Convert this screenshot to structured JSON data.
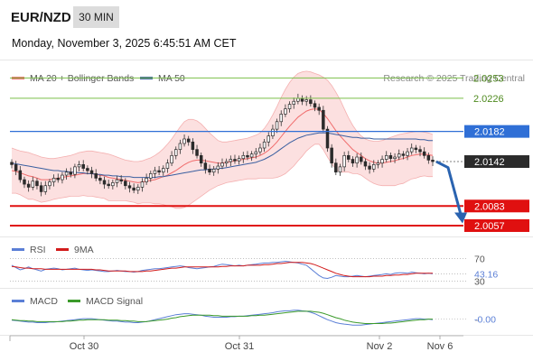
{
  "header": {
    "pair": "EUR/NZD",
    "timeframe": "30 MIN",
    "datetime": "Monday, November 3, 2025 6:45:51 AM CET"
  },
  "watermark": "Research © 2025 Trading Central",
  "colors": {
    "bollinger": "#f06b6b",
    "ma50": "#3a5fa0",
    "green_level": "#7bbf4a",
    "blue_level": "#2f6fd6",
    "red_level": "#e01010",
    "current_price": "#2b2b2b",
    "rsi": "#5b7fd6",
    "rsi_9ma": "#d21b1b",
    "macd": "#5b7fd6",
    "macd_signal": "#3b9a2a",
    "arrow": "#2a63b0"
  },
  "chart_data": [
    {
      "type": "candlestick",
      "name": "price",
      "legend": [
        {
          "label": "MA 20 + Bollinger Bands",
          "color": "#f06b6b"
        },
        {
          "label": "MA 50",
          "color": "#3a5fa0"
        }
      ],
      "ylim": [
        2.0045,
        2.0275
      ],
      "x_labels": [
        "Oct 30",
        "Oct 31",
        "Nov 2",
        "Nov 6"
      ],
      "levels": [
        {
          "value": 2.0253,
          "label": "2.0253",
          "kind": "resistance-green"
        },
        {
          "value": 2.0226,
          "label": "2.0226",
          "kind": "resistance-green"
        },
        {
          "value": 2.0182,
          "label": "2.0182",
          "kind": "pivot-blue"
        },
        {
          "value": 2.0142,
          "label": "2.0142",
          "kind": "current"
        },
        {
          "value": 2.0083,
          "label": "2.0083",
          "kind": "support-red"
        },
        {
          "value": 2.0057,
          "label": "2.0057",
          "kind": "support-red"
        }
      ],
      "close": [
        2.0138,
        2.013,
        2.0118,
        2.0112,
        2.0108,
        2.0116,
        2.011,
        2.0102,
        2.011,
        2.0115,
        2.012,
        2.0118,
        2.0124,
        2.0128,
        2.0125,
        2.0135,
        2.0138,
        2.0133,
        2.013,
        2.0126,
        2.012,
        2.0117,
        2.0112,
        2.011,
        2.0114,
        2.0118,
        2.0116,
        2.011,
        2.0107,
        2.0104,
        2.0108,
        2.0115,
        2.012,
        2.0126,
        2.013,
        2.0128,
        2.0133,
        2.014,
        2.015,
        2.0158,
        2.0166,
        2.0172,
        2.0168,
        2.0158,
        2.015,
        2.014,
        2.0132,
        2.0128,
        2.0132,
        2.0136,
        2.014,
        2.0142,
        2.0145,
        2.0143,
        2.0146,
        2.015,
        2.0148,
        2.0152,
        2.0155,
        2.016,
        2.0168,
        2.0176,
        2.0185,
        2.0195,
        2.0205,
        2.0212,
        2.0218,
        2.0222,
        2.0226,
        2.0222,
        2.0224,
        2.0219,
        2.0214,
        2.021,
        2.0185,
        2.016,
        2.014,
        2.0128,
        2.0135,
        2.015,
        2.0145,
        2.014,
        2.0148,
        2.0142,
        2.0136,
        2.0132,
        2.0138,
        2.014,
        2.0145,
        2.015,
        2.0146,
        2.0148,
        2.0152,
        2.015,
        2.0155,
        2.016,
        2.0158,
        2.0155,
        2.015,
        2.0144,
        2.0142
      ],
      "ma20": [
        2.013,
        2.0129,
        2.0127,
        2.0125,
        2.0123,
        2.0122,
        2.012,
        2.0118,
        2.0118,
        2.0118,
        2.0119,
        2.012,
        2.0121,
        2.0122,
        2.0123,
        2.0124,
        2.0125,
        2.0126,
        2.0126,
        2.0126,
        2.0125,
        2.0124,
        2.0123,
        2.0121,
        2.012,
        2.0119,
        2.0118,
        2.0117,
        2.0116,
        2.0115,
        2.0114,
        2.0115,
        2.0116,
        2.0117,
        2.0118,
        2.012,
        2.0122,
        2.0124,
        2.0127,
        2.013,
        2.0134,
        2.0138,
        2.0141,
        2.0143,
        2.0144,
        2.0144,
        2.0143,
        2.0142,
        2.0141,
        2.014,
        2.014,
        2.0141,
        2.0142,
        2.0143,
        2.0144,
        2.0145,
        2.0146,
        2.0147,
        2.0148,
        2.015,
        2.0153,
        2.0157,
        2.0162,
        2.0168,
        2.0175,
        2.0182,
        2.0189,
        2.0195,
        2.0201,
        2.0205,
        2.0209,
        2.0211,
        2.0212,
        2.0211,
        2.0206,
        2.0199,
        2.0191,
        2.0183,
        2.0176,
        2.017,
        2.0164,
        2.0158,
        2.0154,
        2.015,
        2.0146,
        2.0143,
        2.0141,
        2.014,
        2.014,
        2.0141,
        2.0142,
        2.0143,
        2.0145,
        2.0146,
        2.0148,
        2.015,
        2.0151,
        2.0152,
        2.0152,
        2.0151,
        2.015
      ],
      "bb_upper": [
        2.016,
        2.0158,
        2.0156,
        2.0155,
        2.0154,
        2.0152,
        2.015,
        2.0148,
        2.0147,
        2.0146,
        2.0146,
        2.0147,
        2.0148,
        2.0149,
        2.015,
        2.0152,
        2.0154,
        2.0155,
        2.0156,
        2.0156,
        2.0155,
        2.0154,
        2.0153,
        2.0152,
        2.015,
        2.0148,
        2.0146,
        2.0144,
        2.0143,
        2.0142,
        2.0142,
        2.0143,
        2.0145,
        2.0147,
        2.015,
        2.0154,
        2.0159,
        2.0165,
        2.0172,
        2.018,
        2.0188,
        2.0195,
        2.0198,
        2.0198,
        2.0196,
        2.0192,
        2.0186,
        2.018,
        2.0175,
        2.017,
        2.0168,
        2.0168,
        2.0169,
        2.017,
        2.0171,
        2.0172,
        2.0173,
        2.0175,
        2.0177,
        2.018,
        2.0186,
        2.0194,
        2.0204,
        2.0215,
        2.0227,
        2.0238,
        2.0247,
        2.0254,
        2.0259,
        2.0261,
        2.0262,
        2.0261,
        2.0259,
        2.0257,
        2.0254,
        2.025,
        2.0243,
        2.0234,
        2.0224,
        2.0212,
        2.02,
        2.019,
        2.0182,
        2.0176,
        2.0172,
        2.017,
        2.0169,
        2.0169,
        2.017,
        2.0172,
        2.0174,
        2.0176,
        2.0178,
        2.0179,
        2.018,
        2.0181,
        2.0182,
        2.0182,
        2.0181,
        2.018,
        2.0178
      ],
      "bb_lower": [
        2.01,
        2.01,
        2.0098,
        2.0095,
        2.0092,
        2.0092,
        2.009,
        2.0088,
        2.0089,
        2.009,
        2.0092,
        2.0093,
        2.0094,
        2.0095,
        2.0096,
        2.0096,
        2.0096,
        2.0097,
        2.0096,
        2.0096,
        2.0095,
        2.0094,
        2.0093,
        2.009,
        2.009,
        2.009,
        2.009,
        2.009,
        2.0089,
        2.0088,
        2.0086,
        2.0087,
        2.0087,
        2.0087,
        2.0086,
        2.0086,
        2.0085,
        2.0083,
        2.0082,
        2.008,
        2.008,
        2.0081,
        2.0084,
        2.0088,
        2.0092,
        2.0096,
        2.01,
        2.0104,
        2.0107,
        2.011,
        2.0112,
        2.0114,
        2.0115,
        2.0116,
        2.0117,
        2.0118,
        2.0119,
        2.0119,
        2.0119,
        2.012,
        2.012,
        2.012,
        2.012,
        2.0121,
        2.0123,
        2.0126,
        2.0131,
        2.0136,
        2.0143,
        2.0149,
        2.0156,
        2.0161,
        2.0165,
        2.0165,
        2.0158,
        2.0148,
        2.0139,
        2.0132,
        2.0128,
        2.0128,
        2.0128,
        2.0126,
        2.0126,
        2.0124,
        2.012,
        2.0116,
        2.0113,
        2.0111,
        2.011,
        2.011,
        2.011,
        2.011,
        2.0112,
        2.0113,
        2.0116,
        2.0119,
        2.012,
        2.0122,
        2.0123,
        2.0122,
        2.0122
      ],
      "ma50": [
        2.014,
        2.0139,
        2.0138,
        2.0137,
        2.0136,
        2.0135,
        2.0134,
        2.0133,
        2.0132,
        2.0131,
        2.013,
        2.013,
        2.0129,
        2.0129,
        2.0128,
        2.0128,
        2.0127,
        2.0127,
        2.0126,
        2.0126,
        2.0125,
        2.0125,
        2.0124,
        2.0124,
        2.0123,
        2.0123,
        2.0122,
        2.0122,
        2.0122,
        2.0121,
        2.0121,
        2.0121,
        2.0121,
        2.0121,
        2.0121,
        2.0122,
        2.0122,
        2.0123,
        2.0124,
        2.0125,
        2.0126,
        2.0127,
        2.0128,
        2.0129,
        2.013,
        2.0131,
        2.0131,
        2.0132,
        2.0132,
        2.0133,
        2.0133,
        2.0134,
        2.0135,
        2.0136,
        2.0137,
        2.0138,
        2.0139,
        2.014,
        2.0141,
        2.0143,
        2.0145,
        2.0148,
        2.0151,
        2.0155,
        2.0159,
        2.0163,
        2.0167,
        2.017,
        2.0173,
        2.0175,
        2.0177,
        2.0178,
        2.0179,
        2.018,
        2.018,
        2.018,
        2.0179,
        2.0178,
        2.0177,
        2.0176,
        2.0175,
        2.0174,
        2.0174,
        2.0173,
        2.0173,
        2.0173,
        2.0172,
        2.0172,
        2.0172,
        2.0172,
        2.0172,
        2.0172,
        2.0172,
        2.0172,
        2.0172,
        2.0172,
        2.0172,
        2.0171,
        2.0171,
        2.017,
        2.017
      ]
    },
    {
      "type": "line",
      "name": "rsi",
      "legend": [
        {
          "label": "RSI",
          "color": "#5b7fd6"
        },
        {
          "label": "9MA",
          "color": "#d21b1b"
        }
      ],
      "ylim": [
        20,
        80
      ],
      "ticks": [
        {
          "value": 70,
          "label": "70"
        },
        {
          "value": 30,
          "label": "30"
        }
      ],
      "current": {
        "value": 43.16,
        "label": "43.16"
      },
      "rsi": [
        58,
        54,
        50,
        52,
        55,
        52,
        50,
        48,
        51,
        52,
        53,
        52,
        50,
        51,
        52,
        53,
        51,
        50,
        49,
        50,
        49,
        48,
        47,
        47,
        48,
        49,
        48,
        47,
        47,
        46,
        47,
        49,
        50,
        51,
        52,
        52,
        53,
        54,
        55,
        56,
        57,
        56,
        54,
        53,
        52,
        53,
        54,
        55,
        56,
        58,
        60,
        59,
        58,
        57,
        58,
        57,
        58,
        59,
        60,
        61,
        62,
        62,
        63,
        63,
        64,
        65,
        64,
        63,
        62,
        60,
        58,
        52,
        46,
        40,
        36,
        35,
        37,
        40,
        39,
        38,
        38,
        39,
        40,
        39,
        38,
        39,
        40,
        41,
        42,
        43,
        42,
        44,
        45,
        45,
        44,
        46,
        45,
        44,
        43,
        44,
        43
      ],
      "rsi_ma": [
        56,
        55,
        54,
        53,
        53,
        52,
        52,
        52,
        51,
        51,
        51,
        51,
        51,
        51,
        51,
        51,
        51,
        51,
        51,
        51,
        50,
        50,
        49,
        48,
        48,
        48,
        48,
        48,
        47,
        47,
        47,
        47,
        48,
        48,
        49,
        50,
        51,
        52,
        53,
        53,
        54,
        55,
        55,
        55,
        55,
        55,
        55,
        55,
        55,
        55,
        56,
        56,
        57,
        57,
        57,
        57,
        58,
        58,
        58,
        58,
        59,
        59,
        60,
        61,
        61,
        62,
        63,
        63,
        63,
        63,
        62,
        61,
        59,
        56,
        53,
        50,
        47,
        44,
        42,
        40,
        39,
        38,
        38,
        38,
        38,
        38,
        39,
        39,
        39,
        40,
        40,
        41,
        41,
        42,
        42,
        43,
        44,
        44,
        44,
        44,
        44
      ]
    },
    {
      "type": "line",
      "name": "macd",
      "legend": [
        {
          "label": "MACD",
          "color": "#5b7fd6"
        },
        {
          "label": "MACD Signal",
          "color": "#3b9a2a"
        }
      ],
      "ylim": [
        -0.003,
        0.0025
      ],
      "current": {
        "value": 0.0,
        "label": "-0.00"
      },
      "macd": [
        -0.0002,
        -0.0003,
        -0.0004,
        -0.0005,
        -0.0006,
        -0.0006,
        -0.0007,
        -0.0007,
        -0.0007,
        -0.0006,
        -0.0006,
        -0.0005,
        -0.0004,
        -0.0003,
        -0.0002,
        -0.0001,
        0.0,
        0.0001,
        0.0001,
        0.0001,
        0.0,
        -0.0001,
        -0.0002,
        -0.0003,
        -0.0004,
        -0.0004,
        -0.0005,
        -0.0006,
        -0.0006,
        -0.0007,
        -0.0007,
        -0.0006,
        -0.0005,
        -0.0003,
        -0.0001,
        0.0001,
        0.0003,
        0.0005,
        0.0007,
        0.0009,
        0.001,
        0.0011,
        0.0011,
        0.001,
        0.0009,
        0.0008,
        0.0006,
        0.0005,
        0.0004,
        0.0004,
        0.0004,
        0.0004,
        0.0005,
        0.0005,
        0.0006,
        0.0006,
        0.0007,
        0.0008,
        0.0009,
        0.001,
        0.0011,
        0.0012,
        0.0013,
        0.0015,
        0.0016,
        0.0017,
        0.0017,
        0.0018,
        0.0018,
        0.0017,
        0.0016,
        0.0014,
        0.0011,
        0.0007,
        0.0003,
        -0.0001,
        -0.0004,
        -0.0007,
        -0.0009,
        -0.001,
        -0.0011,
        -0.0012,
        -0.0012,
        -0.0012,
        -0.0011,
        -0.001,
        -0.0009,
        -0.0008,
        -0.0007,
        -0.0006,
        -0.0005,
        -0.0004,
        -0.0003,
        -0.0002,
        -0.0001,
        0.0,
        0.0001,
        0.0001,
        0.0,
        0.0,
        -0.0001
      ],
      "signal": [
        -0.0001,
        -0.0002,
        -0.0003,
        -0.0003,
        -0.0004,
        -0.0004,
        -0.0005,
        -0.0005,
        -0.0005,
        -0.0005,
        -0.0005,
        -0.0005,
        -0.0005,
        -0.0004,
        -0.0004,
        -0.0003,
        -0.0002,
        -0.0002,
        -0.0001,
        -0.0001,
        -0.0001,
        -0.0001,
        -0.0001,
        -0.0002,
        -0.0002,
        -0.0002,
        -0.0003,
        -0.0003,
        -0.0004,
        -0.0004,
        -0.0005,
        -0.0005,
        -0.0005,
        -0.0004,
        -0.0003,
        -0.0002,
        -0.0001,
        0.0,
        0.0002,
        0.0003,
        0.0005,
        0.0006,
        0.0007,
        0.0008,
        0.0008,
        0.0008,
        0.0008,
        0.0008,
        0.0007,
        0.0007,
        0.0006,
        0.0006,
        0.0006,
        0.0006,
        0.0006,
        0.0006,
        0.0006,
        0.0007,
        0.0007,
        0.0008,
        0.0008,
        0.0009,
        0.001,
        0.0011,
        0.0012,
        0.0013,
        0.0014,
        0.0015,
        0.0016,
        0.0016,
        0.0016,
        0.0016,
        0.0015,
        0.0014,
        0.0012,
        0.0009,
        0.0006,
        0.0003,
        0.0001,
        -0.0002,
        -0.0004,
        -0.0006,
        -0.0007,
        -0.0008,
        -0.0009,
        -0.0009,
        -0.0009,
        -0.0009,
        -0.0009,
        -0.0008,
        -0.0008,
        -0.0007,
        -0.0006,
        -0.0005,
        -0.0004,
        -0.0003,
        -0.0002,
        -0.0001,
        -0.0001,
        0.0,
        0.0
      ]
    }
  ]
}
